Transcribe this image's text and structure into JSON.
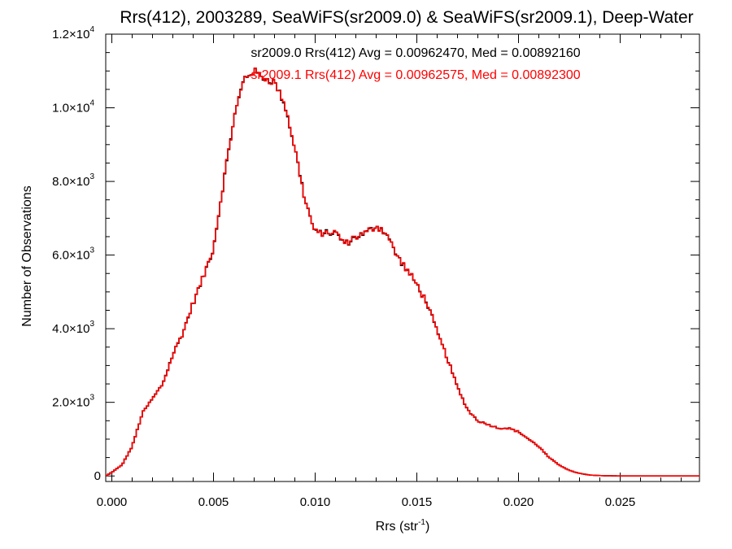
{
  "chart_data": {
    "type": "line",
    "style": "step histogram",
    "title": "Rrs(412), 2003289, SeaWiFS(sr2009.0) & SeaWiFS(sr2009.1), Deep-Water",
    "xlabel": "Rrs (str",
    "xlabel_sup": "-1",
    "xlabel_end": ")",
    "ylabel": "Number of Observations",
    "xlim": [
      -0.0003,
      0.0289
    ],
    "ylim": [
      -150,
      12000
    ],
    "x_ticks": [
      0.0,
      0.005,
      0.01,
      0.015,
      0.02,
      0.025
    ],
    "x_tick_labels": [
      "0.000",
      "0.005",
      "0.010",
      "0.015",
      "0.020",
      "0.025"
    ],
    "y_ticks": [
      0,
      2000,
      4000,
      6000,
      8000,
      10000,
      12000
    ],
    "y_tick_labels": [
      {
        "mant": "0",
        "exp": ""
      },
      {
        "mant": "2.0×10",
        "exp": "3"
      },
      {
        "mant": "4.0×10",
        "exp": "3"
      },
      {
        "mant": "6.0×10",
        "exp": "3"
      },
      {
        "mant": "8.0×10",
        "exp": "3"
      },
      {
        "mant": "1.0×10",
        "exp": "4"
      },
      {
        "mant": "1.2×10",
        "exp": "4"
      }
    ],
    "annotations": [
      {
        "text": "sr2009.0 Rrs(412) Avg = 0.00962470, Med = 0.00892160",
        "color": "#000000"
      },
      {
        "text": "sr2009.1 Rrs(412) Avg = 0.00962575, Med = 0.00892300",
        "color": "#ff0000"
      }
    ],
    "bin_width": 0.0001,
    "x_start": -0.0003,
    "series": [
      {
        "color": "#000000",
        "values": []
      },
      {
        "color": "#ff0000",
        "values": []
      }
    ],
    "profile": {
      "x": [
        -0.0003,
        0.0,
        0.0005,
        0.001,
        0.0015,
        0.002,
        0.0025,
        0.003,
        0.0035,
        0.004,
        0.0045,
        0.005,
        0.0055,
        0.006,
        0.0065,
        0.007,
        0.0075,
        0.008,
        0.0085,
        0.009,
        0.0095,
        0.01,
        0.0105,
        0.011,
        0.0115,
        0.012,
        0.0125,
        0.013,
        0.0135,
        0.014,
        0.0145,
        0.015,
        0.0155,
        0.016,
        0.0165,
        0.017,
        0.0175,
        0.018,
        0.0185,
        0.019,
        0.0195,
        0.02,
        0.0205,
        0.021,
        0.0215,
        0.022,
        0.0225,
        0.023,
        0.0235,
        0.024,
        0.025,
        0.0289
      ],
      "y": [
        0,
        100,
        300,
        800,
        1700,
        2100,
        2500,
        3300,
        3900,
        4700,
        5400,
        6200,
        8000,
        9700,
        10800,
        11000,
        10800,
        10700,
        10100,
        8900,
        7500,
        6600,
        6600,
        6600,
        6300,
        6500,
        6600,
        6800,
        6600,
        6000,
        5600,
        5200,
        4700,
        3900,
        3200,
        2400,
        1800,
        1500,
        1400,
        1300,
        1300,
        1200,
        1000,
        800,
        500,
        300,
        150,
        70,
        25,
        10,
        0,
        0
      ]
    }
  }
}
